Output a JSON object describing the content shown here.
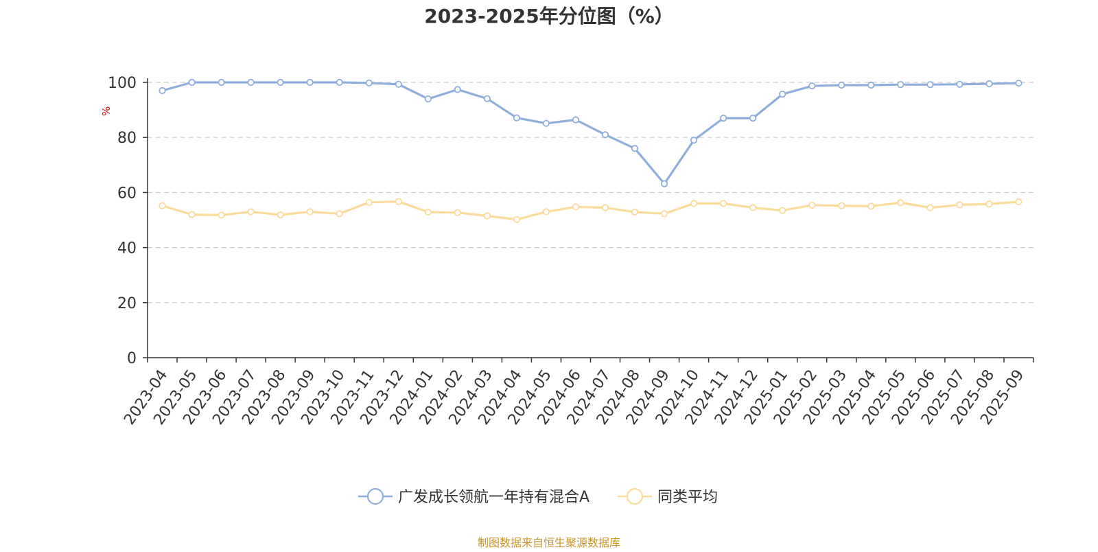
{
  "chart_data": {
    "type": "line",
    "title": "2023-2025年分位图（%）",
    "ylabel": "%",
    "xlabel": "",
    "ylim": [
      0,
      100
    ],
    "yticks": [
      0,
      20,
      40,
      60,
      80,
      100
    ],
    "grid": true,
    "legend_position": "bottom-center",
    "categories": [
      "2023-04",
      "2023-05",
      "2023-06",
      "2023-07",
      "2023-08",
      "2023-09",
      "2023-10",
      "2023-11",
      "2023-12",
      "2024-01",
      "2024-02",
      "2024-03",
      "2024-04",
      "2024-05",
      "2024-06",
      "2024-07",
      "2024-08",
      "2024-09",
      "2024-10",
      "2024-11",
      "2024-12",
      "2025-01",
      "2025-02",
      "2025-03",
      "2025-04",
      "2025-05",
      "2025-06",
      "2025-07",
      "2025-08",
      "2025-09"
    ],
    "series": [
      {
        "name": "广发成长领航一年持有混合A",
        "color": "#8eaedb",
        "values": [
          97.0,
          100.0,
          100.0,
          100.0,
          100.0,
          100.0,
          100.0,
          99.8,
          99.3,
          94.0,
          97.4,
          94.1,
          87.1,
          85.1,
          86.4,
          81.0,
          76.0,
          63.2,
          79.0,
          87.0,
          87.0,
          95.7,
          98.7,
          99.0,
          99.0,
          99.2,
          99.2,
          99.3,
          99.5,
          99.7
        ]
      },
      {
        "name": "同类平均",
        "color": "#fbdb9c",
        "values": [
          55.2,
          52.0,
          51.8,
          53.0,
          51.9,
          53.0,
          52.3,
          56.4,
          56.7,
          52.9,
          52.7,
          51.5,
          50.2,
          53.0,
          54.8,
          54.5,
          52.9,
          52.3,
          56.0,
          56.0,
          54.5,
          53.5,
          55.4,
          55.2,
          55.0,
          56.3,
          54.5,
          55.5,
          55.8,
          56.6
        ]
      }
    ]
  },
  "footer": {
    "source": "制图数据来自恒生聚源数据库",
    "source_color": "#c8952c"
  }
}
